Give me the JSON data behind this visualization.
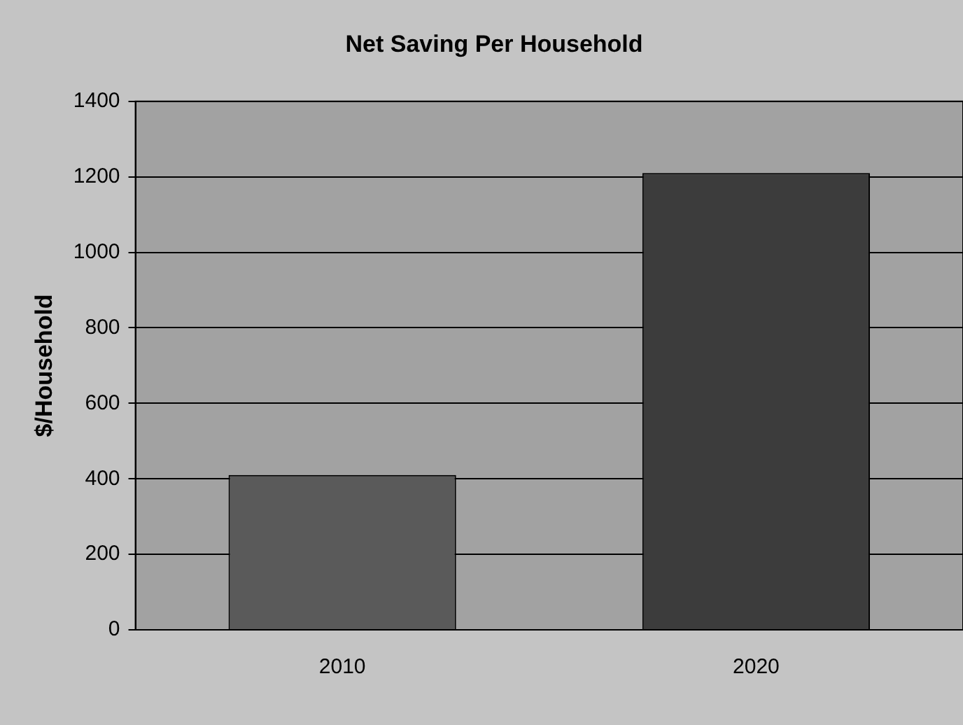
{
  "chart_data": {
    "type": "bar",
    "title": "Net Saving Per Household",
    "ylabel": "$/Household",
    "categories": [
      "2010",
      "2020"
    ],
    "values": [
      410,
      1210
    ],
    "colors": [
      "#5a5a5a",
      "#3c3c3c"
    ],
    "ylim": [
      0,
      1400
    ],
    "yticks": [
      0,
      200,
      400,
      600,
      800,
      1000,
      1200,
      1400
    ],
    "grid": "y"
  }
}
